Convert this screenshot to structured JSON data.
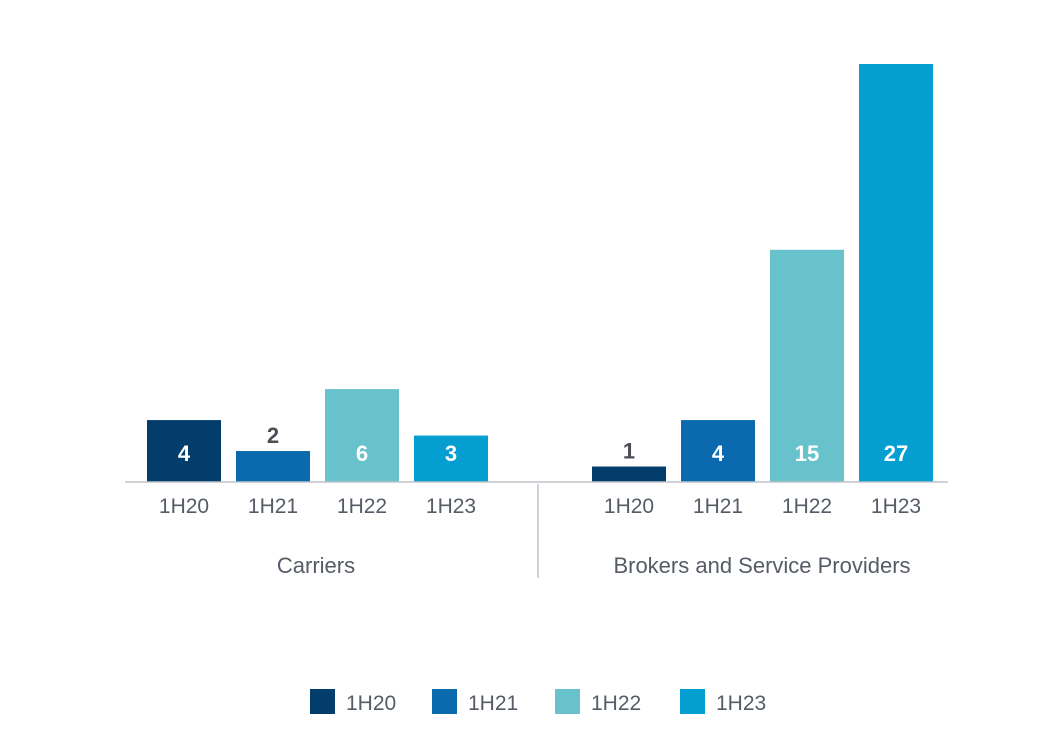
{
  "chart_data": {
    "type": "bar",
    "title": "",
    "xlabel": "",
    "ylabel": "",
    "groups": [
      {
        "name": "Carriers",
        "categories": [
          "1H20",
          "1H21",
          "1H22",
          "1H23"
        ],
        "values": [
          4,
          2,
          6,
          3
        ]
      },
      {
        "name": "Brokers and Service Providers",
        "categories": [
          "1H20",
          "1H21",
          "1H22",
          "1H23"
        ],
        "values": [
          1,
          4,
          15,
          27
        ]
      }
    ],
    "series": [
      {
        "name": "1H20",
        "color": "#033d6b"
      },
      {
        "name": "1H21",
        "color": "#0a6aad"
      },
      {
        "name": "1H22",
        "color": "#67c2cc"
      },
      {
        "name": "1H23",
        "color": "#049ed1"
      }
    ],
    "ylim": [
      0,
      27
    ],
    "grid": false,
    "legend_position": "bottom"
  }
}
